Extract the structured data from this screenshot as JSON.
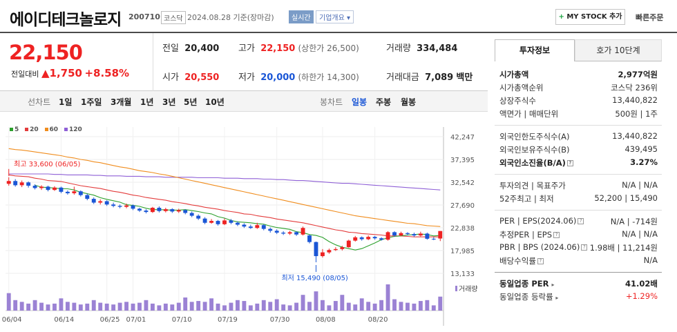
{
  "header": {
    "title": "에이디테크놀로지",
    "code": "200710",
    "market": "코스닥",
    "date": "2024.08.28 기준(장마감)",
    "realtime": "실시간",
    "overview": "기업개요 ▾",
    "mystock": "MY STOCK 추가",
    "mystock_plus": "+",
    "quick_order": "빠른주문"
  },
  "price": {
    "current": "22,150",
    "change_label": "전일대비",
    "change_value": "▲1,750",
    "change_pct": "+8.58%",
    "prev_close_label": "전일",
    "prev_close": "20,400",
    "open_label": "시가",
    "open": "20,550",
    "high_label": "고가",
    "high": "22,150",
    "upper_limit": "(상한가 26,500)",
    "low_label": "저가",
    "low": "20,000",
    "lower_limit": "(하한가 14,300)",
    "volume_label": "거래량",
    "volume": "334,484",
    "amount_label": "거래대금",
    "amount": "7,089",
    "amount_unit": "백만"
  },
  "toolbar": {
    "line_label": "선차트",
    "periods": [
      "1일",
      "1주일",
      "3개월",
      "1년",
      "3년",
      "5년",
      "10년"
    ],
    "candle_label": "봉차트",
    "candle_types": [
      "일봉",
      "주봉",
      "월봉"
    ]
  },
  "legend": [
    {
      "label": "5",
      "color": "#2ca02c"
    },
    {
      "label": "20",
      "color": "#e33b3b"
    },
    {
      "label": "60",
      "color": "#f08c1c"
    },
    {
      "label": "120",
      "color": "#8e5fd6"
    }
  ],
  "chart_data": {
    "type": "candlestick",
    "y_ticks": [
      "42,247",
      "37,395",
      "32,542",
      "27,690",
      "22,838",
      "17,985",
      "13,133"
    ],
    "ylim": [
      13133,
      42247
    ],
    "x_ticks": [
      "06/04",
      "06/14",
      "06/25",
      "07/01",
      "07/10",
      "07/19",
      "07/30",
      "08/08",
      "08/20"
    ],
    "high_annotation": "최고 33,600 (06/05)",
    "low_annotation": "최저 15,490 (08/05)",
    "volume_label": "거래량",
    "candles": [
      {
        "o": 32200,
        "c": 32800,
        "h": 33600,
        "l": 31800
      },
      {
        "o": 32800,
        "c": 31900,
        "h": 33200,
        "l": 31600
      },
      {
        "o": 31900,
        "c": 32500,
        "h": 32900,
        "l": 31500
      },
      {
        "o": 32500,
        "c": 31800,
        "h": 32700,
        "l": 31400
      },
      {
        "o": 31800,
        "c": 31300,
        "h": 32100,
        "l": 31000
      },
      {
        "o": 31300,
        "c": 31600,
        "h": 31900,
        "l": 30900
      },
      {
        "o": 31600,
        "c": 30900,
        "h": 31800,
        "l": 30600
      },
      {
        "o": 30900,
        "c": 31400,
        "h": 31700,
        "l": 30700
      },
      {
        "o": 31400,
        "c": 30500,
        "h": 31600,
        "l": 30200
      },
      {
        "o": 30500,
        "c": 30200,
        "h": 30800,
        "l": 29900
      },
      {
        "o": 30200,
        "c": 30600,
        "h": 31600,
        "l": 29900
      },
      {
        "o": 30600,
        "c": 29800,
        "h": 30800,
        "l": 29500
      },
      {
        "o": 29800,
        "c": 29000,
        "h": 30100,
        "l": 28700
      },
      {
        "o": 29000,
        "c": 28200,
        "h": 29300,
        "l": 27900
      },
      {
        "o": 28200,
        "c": 28500,
        "h": 28900,
        "l": 27800
      },
      {
        "o": 28500,
        "c": 27800,
        "h": 28700,
        "l": 27500
      },
      {
        "o": 27800,
        "c": 27500,
        "h": 28200,
        "l": 27200
      },
      {
        "o": 27500,
        "c": 27300,
        "h": 27800,
        "l": 27000
      },
      {
        "o": 27300,
        "c": 27600,
        "h": 28000,
        "l": 27000
      },
      {
        "o": 27600,
        "c": 26900,
        "h": 27800,
        "l": 26600
      },
      {
        "o": 26900,
        "c": 26500,
        "h": 27100,
        "l": 26200
      },
      {
        "o": 26500,
        "c": 26200,
        "h": 26800,
        "l": 25900
      },
      {
        "o": 26200,
        "c": 27100,
        "h": 27300,
        "l": 26000
      },
      {
        "o": 27100,
        "c": 26400,
        "h": 27400,
        "l": 26100
      },
      {
        "o": 26400,
        "c": 26800,
        "h": 27100,
        "l": 26100
      },
      {
        "o": 26800,
        "c": 26300,
        "h": 27000,
        "l": 26000
      },
      {
        "o": 26300,
        "c": 26600,
        "h": 26900,
        "l": 26000
      },
      {
        "o": 26600,
        "c": 26000,
        "h": 26800,
        "l": 25700
      },
      {
        "o": 26000,
        "c": 25400,
        "h": 26300,
        "l": 25100
      },
      {
        "o": 25400,
        "c": 24800,
        "h": 25700,
        "l": 24500
      },
      {
        "o": 24800,
        "c": 23900,
        "h": 25100,
        "l": 23600
      },
      {
        "o": 23900,
        "c": 24300,
        "h": 24700,
        "l": 23700
      },
      {
        "o": 24300,
        "c": 23600,
        "h": 24500,
        "l": 23300
      },
      {
        "o": 23600,
        "c": 24400,
        "h": 24800,
        "l": 23400
      },
      {
        "o": 24400,
        "c": 23900,
        "h": 24700,
        "l": 23600
      },
      {
        "o": 23900,
        "c": 23500,
        "h": 24200,
        "l": 23200
      },
      {
        "o": 23500,
        "c": 23100,
        "h": 23800,
        "l": 22800
      },
      {
        "o": 23100,
        "c": 22800,
        "h": 23500,
        "l": 22600
      },
      {
        "o": 22800,
        "c": 23400,
        "h": 23900,
        "l": 22600
      },
      {
        "o": 23400,
        "c": 22600,
        "h": 23600,
        "l": 22300
      },
      {
        "o": 22600,
        "c": 22200,
        "h": 22900,
        "l": 21800
      },
      {
        "o": 22200,
        "c": 21800,
        "h": 22500,
        "l": 21500
      },
      {
        "o": 21800,
        "c": 21600,
        "h": 22100,
        "l": 21300
      },
      {
        "o": 21600,
        "c": 21900,
        "h": 22200,
        "l": 21300
      },
      {
        "o": 21900,
        "c": 21400,
        "h": 22100,
        "l": 21100
      },
      {
        "o": 21400,
        "c": 22800,
        "h": 23100,
        "l": 21200
      },
      {
        "o": 21200,
        "c": 19800,
        "h": 21400,
        "l": 19500
      },
      {
        "o": 19800,
        "c": 16800,
        "h": 19900,
        "l": 15490
      },
      {
        "o": 16800,
        "c": 17600,
        "h": 18300,
        "l": 16500
      },
      {
        "o": 17600,
        "c": 18100,
        "h": 18400,
        "l": 17300
      },
      {
        "o": 18100,
        "c": 18300,
        "h": 18700,
        "l": 17900
      },
      {
        "o": 18300,
        "c": 18700,
        "h": 19000,
        "l": 18000
      },
      {
        "o": 18700,
        "c": 20100,
        "h": 20300,
        "l": 18600
      },
      {
        "o": 20100,
        "c": 20800,
        "h": 21100,
        "l": 19900
      },
      {
        "o": 20800,
        "c": 20400,
        "h": 21000,
        "l": 20100
      },
      {
        "o": 20400,
        "c": 20900,
        "h": 21200,
        "l": 20200
      },
      {
        "o": 20900,
        "c": 20600,
        "h": 21100,
        "l": 20300
      },
      {
        "o": 20600,
        "c": 20300,
        "h": 20800,
        "l": 20100
      },
      {
        "o": 20300,
        "c": 21900,
        "h": 22100,
        "l": 20100
      },
      {
        "o": 21900,
        "c": 21200,
        "h": 22100,
        "l": 20900
      },
      {
        "o": 21200,
        "c": 21700,
        "h": 22000,
        "l": 21000
      },
      {
        "o": 21700,
        "c": 21500,
        "h": 21900,
        "l": 21200
      },
      {
        "o": 21500,
        "c": 21200,
        "h": 21800,
        "l": 20900
      },
      {
        "o": 21200,
        "c": 21600,
        "h": 22000,
        "l": 21000
      },
      {
        "o": 21600,
        "c": 20500,
        "h": 21800,
        "l": 20300
      },
      {
        "o": 20500,
        "c": 20400,
        "h": 20800,
        "l": 20200
      },
      {
        "o": 20550,
        "c": 22150,
        "h": 22150,
        "l": 20000
      }
    ],
    "volumes": [
      20,
      12,
      10,
      8,
      12,
      9,
      7,
      8,
      14,
      10,
      9,
      7,
      8,
      12,
      9,
      8,
      7,
      9,
      10,
      8,
      9,
      12,
      8,
      6,
      8,
      7,
      9,
      15,
      10,
      11,
      10,
      14,
      8,
      6,
      9,
      12,
      11,
      6,
      8,
      12,
      10,
      13,
      7,
      6,
      9,
      18,
      10,
      22,
      12,
      6,
      11,
      18,
      9,
      7,
      14,
      10,
      8,
      12,
      30,
      13,
      10,
      9,
      8,
      11,
      12,
      6,
      16
    ],
    "ma": {
      "ma5": [
        null,
        null,
        null,
        null,
        31900,
        31500,
        31400,
        31300,
        31150,
        31150,
        30900,
        30400,
        30100,
        29800,
        29250,
        28900,
        28600,
        28300,
        27750,
        27600,
        27400,
        27000,
        26700,
        26700,
        26650,
        26600,
        26600,
        26700,
        26500,
        26300,
        26000,
        25800,
        25200,
        24900,
        24400,
        24100,
        24000,
        23900,
        23700,
        23600,
        23200,
        22900,
        22700,
        22500,
        22000,
        21800,
        21400,
        21200,
        20800,
        19900,
        19200,
        18700,
        18400,
        18100,
        18400,
        19000,
        19600,
        20300,
        20700,
        21000,
        21100,
        21300,
        21400,
        21500,
        21400,
        21100,
        21200
      ],
      "ma20": [
        34100,
        33900,
        33800,
        33700,
        33400,
        33200,
        32900,
        32800,
        32700,
        32400,
        32100,
        31800,
        31600,
        31400,
        31200,
        30900,
        30600,
        30400,
        30100,
        29800,
        29600,
        29300,
        29100,
        28900,
        28700,
        28400,
        28200,
        28000,
        27700,
        27500,
        27200,
        27000,
        26800,
        26500,
        26300,
        26100,
        25800,
        25700,
        25400,
        25200,
        25000,
        24700,
        24500,
        24300,
        24100,
        23900,
        23600,
        23300,
        23000,
        22700,
        22400,
        22200,
        21900,
        21800,
        21600,
        21500,
        21400,
        21300,
        21100,
        21100,
        21100,
        21000,
        20900,
        20900,
        20900,
        20900,
        20900
      ],
      "ma60": [
        39700,
        39500,
        39400,
        39200,
        39000,
        38800,
        38600,
        38400,
        38200,
        37900,
        37700,
        37400,
        37200,
        36900,
        36700,
        36400,
        36100,
        35800,
        35600,
        35300,
        35000,
        34800,
        34600,
        34300,
        34100,
        33800,
        33500,
        33200,
        32900,
        32600,
        32300,
        32000,
        31700,
        31400,
        31100,
        30800,
        30500,
        30200,
        29900,
        29600,
        29300,
        29000,
        28700,
        28400,
        28100,
        27800,
        27500,
        27200,
        26900,
        26600,
        26300,
        26000,
        25700,
        25400,
        25200,
        25000,
        24800,
        24600,
        24400,
        24200,
        24000,
        23800,
        23700,
        23500,
        23300,
        23200,
        23100
      ],
      "ma120": [
        34300,
        34300,
        34300,
        34300,
        34300,
        34300,
        34300,
        34200,
        34200,
        34100,
        34100,
        34100,
        34100,
        34000,
        34000,
        33900,
        33900,
        33900,
        33800,
        33800,
        33800,
        33700,
        33700,
        33700,
        33600,
        33600,
        33600,
        33600,
        33600,
        33500,
        33500,
        33500,
        33500,
        33400,
        33400,
        33400,
        33300,
        33300,
        33300,
        33200,
        33200,
        33100,
        33100,
        33000,
        32900,
        32900,
        32800,
        32700,
        32600,
        32500,
        32400,
        32300,
        32300,
        32200,
        32100,
        32000,
        31900,
        31800,
        31700,
        31600,
        31500,
        31400,
        31300,
        31200,
        31100,
        31000,
        30900
      ]
    }
  },
  "invest": {
    "tab_active": "투자정보",
    "tab_inactive": "호가 10단계",
    "rows": [
      {
        "label": "시가총액",
        "value": "2,977억원",
        "bold": true
      },
      {
        "label": "시가총액순위",
        "value": "코스닥 236위"
      },
      {
        "label": "상장주식수",
        "value": "13,440,822"
      },
      {
        "label": "액면가 | 매매단위",
        "value": "500원 | 1주"
      },
      {
        "label": "외국인한도주식수(A)",
        "value": "13,440,822"
      },
      {
        "label": "외국인보유주식수(B)",
        "value": "439,495"
      },
      {
        "label": "외국인소진율(B/A)",
        "value": "3.27%",
        "bold": true
      },
      {
        "label": "투자의견 | 목표주가",
        "value": "N/A | N/A"
      },
      {
        "label": "52주최고 | 최저",
        "value": "52,200 | 15,490"
      },
      {
        "label": "PER | EPS(2024.06)",
        "value": "N/A | -714원"
      },
      {
        "label": "추정PER | EPS",
        "value": "N/A | N/A"
      },
      {
        "label": "PBR | BPS (2024.06)",
        "value": "1.98배 | 11,214원"
      },
      {
        "label": "배당수익률",
        "value": "N/A"
      },
      {
        "label": "동일업종 PER",
        "value": "41.02배",
        "bold": true
      },
      {
        "label": "동일업종 등락률",
        "value": "+1.29%",
        "red": true
      }
    ]
  }
}
